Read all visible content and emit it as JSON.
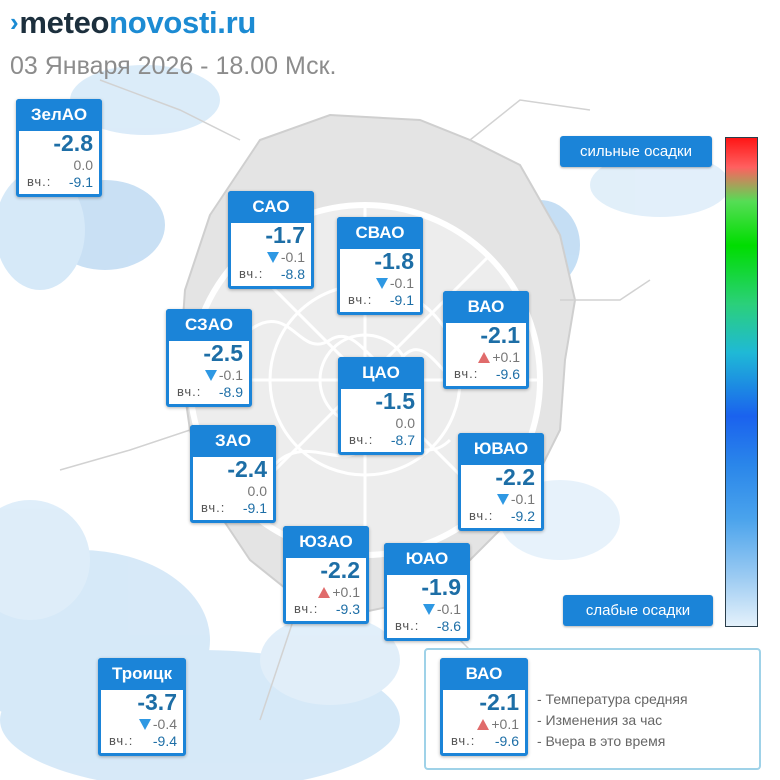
{
  "logo": {
    "chevron": "›",
    "part1": "meteo",
    "part2": "novosti.ru"
  },
  "subtitle": "03 Января 2026 - 18.00 Мск.",
  "districts": [
    {
      "key": "zelao",
      "name": "ЗелАО",
      "temp": "-2.8",
      "change": "0.0",
      "trend": "none",
      "yesterday_label": "вч.:",
      "yesterday": "-9.1"
    },
    {
      "key": "sao",
      "name": "САО",
      "temp": "-1.7",
      "change": "-0.1",
      "trend": "down",
      "yesterday_label": "вч.:",
      "yesterday": "-8.8"
    },
    {
      "key": "svao",
      "name": "СВАО",
      "temp": "-1.8",
      "change": "-0.1",
      "trend": "down",
      "yesterday_label": "вч.:",
      "yesterday": "-9.1"
    },
    {
      "key": "vao",
      "name": "ВАО",
      "temp": "-2.1",
      "change": "+0.1",
      "trend": "up",
      "yesterday_label": "вч.:",
      "yesterday": "-9.6"
    },
    {
      "key": "szao",
      "name": "СЗАО",
      "temp": "-2.5",
      "change": "-0.1",
      "trend": "down",
      "yesterday_label": "вч.:",
      "yesterday": "-8.9"
    },
    {
      "key": "cao",
      "name": "ЦАО",
      "temp": "-1.5",
      "change": "0.0",
      "trend": "none",
      "yesterday_label": "вч.:",
      "yesterday": "-8.7"
    },
    {
      "key": "zao",
      "name": "ЗАО",
      "temp": "-2.4",
      "change": "0.0",
      "trend": "none",
      "yesterday_label": "вч.:",
      "yesterday": "-9.1"
    },
    {
      "key": "yuvao",
      "name": "ЮВАО",
      "temp": "-2.2",
      "change": "-0.1",
      "trend": "down",
      "yesterday_label": "вч.:",
      "yesterday": "-9.2"
    },
    {
      "key": "yuzao",
      "name": "ЮЗАО",
      "temp": "-2.2",
      "change": "+0.1",
      "trend": "up",
      "yesterday_label": "вч.:",
      "yesterday": "-9.3"
    },
    {
      "key": "yuao",
      "name": "ЮАО",
      "temp": "-1.9",
      "change": "-0.1",
      "trend": "down",
      "yesterday_label": "вч.:",
      "yesterday": "-8.6"
    },
    {
      "key": "troitsk",
      "name": "Троицк",
      "temp": "-3.7",
      "change": "-0.4",
      "trend": "down",
      "yesterday_label": "вч.:",
      "yesterday": "-9.4"
    }
  ],
  "scale": {
    "strong_label": "сильные осадки",
    "weak_label": "слабые осадки"
  },
  "legend": {
    "sample": {
      "name": "ВАО",
      "temp": "-2.1",
      "change": "+0.1",
      "trend": "up",
      "yesterday_label": "вч.:",
      "yesterday": "-9.6"
    },
    "line1": "- Температура средняя",
    "line2": "- Изменения за час",
    "line3": "- Вчера в это время"
  },
  "colors": {
    "accent": "#1b84d8",
    "temp_text": "#1d6ea6",
    "trend_up": "#e06b6b",
    "trend_down": "#2e98e3",
    "precip_light": "#bfdcf3"
  }
}
